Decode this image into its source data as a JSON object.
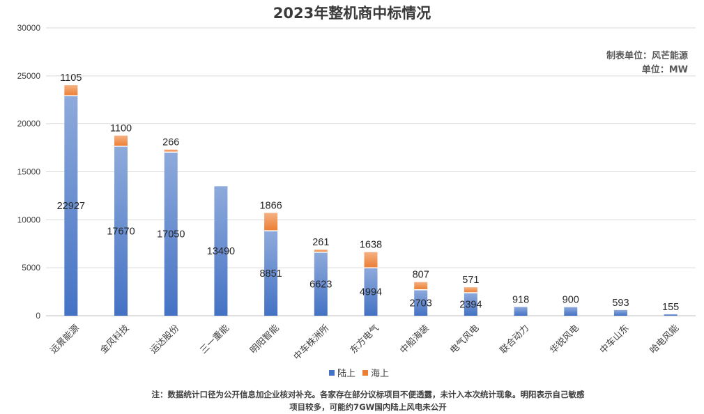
{
  "maker": {
    "source": "制表单位：风芒能源",
    "unit": "单位：MW"
  },
  "notes": [
    "注：数据统计口径为公开信息加企业核对补充。各家存在部分议标项目不便透露，未计入本次统计现象。明阳表示自己敏感",
    "项目较多，可能约7GW国内陆上风电未公开"
  ],
  "colors": {
    "onshore_top": "#8eaadb",
    "onshore_bottom": "#4472c4",
    "offshore_top": "#f4b183",
    "offshore_bottom": "#ed7d31",
    "grid": "#d9d9d9",
    "axis": "#bfbfbf"
  },
  "chart_data": {
    "type": "bar",
    "stacked": true,
    "title": "2023年整机商中标情况",
    "categories": [
      "远景能源",
      "金风科技",
      "运达股份",
      "三一重能",
      "明阳智能",
      "中车株洲所",
      "东方电气",
      "中船海装",
      "电气风电",
      "联合动力",
      "华锐风电",
      "中车山东",
      "哈电风能"
    ],
    "series": [
      {
        "name": "陆上",
        "values": [
          22927,
          17670,
          17050,
          13490,
          8851,
          6623,
          4994,
          2703,
          2394,
          918,
          900,
          593,
          155
        ]
      },
      {
        "name": "海上",
        "values": [
          1105,
          1100,
          266,
          0,
          1866,
          261,
          1638,
          807,
          571,
          0,
          0,
          0,
          0
        ]
      }
    ],
    "ylim": [
      0,
      30000
    ],
    "yticks": [
      0,
      5000,
      10000,
      15000,
      20000,
      25000,
      30000
    ],
    "grid": true,
    "legend": "bottom-center",
    "xlabel": "",
    "ylabel": ""
  }
}
